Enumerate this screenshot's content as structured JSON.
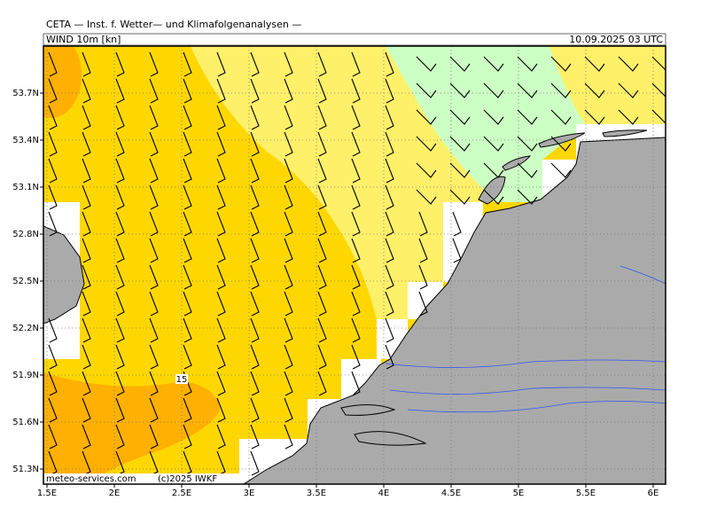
{
  "header": {
    "title": "CETA — Inst. f. Wetter— und Klimafolgenanalysen —",
    "field": "WIND 10m [kn]",
    "valid_time": "10.09.2025 03 UTC"
  },
  "map": {
    "lat_ticks": [
      {
        "value": 53.7,
        "label": "53.7N"
      },
      {
        "value": 53.4,
        "label": "53.4N"
      },
      {
        "value": 53.1,
        "label": "53.1N"
      },
      {
        "value": 52.8,
        "label": "52.8N"
      },
      {
        "value": 52.5,
        "label": "52.5N"
      },
      {
        "value": 52.2,
        "label": "52.2N"
      },
      {
        "value": 51.9,
        "label": "51.9N"
      },
      {
        "value": 51.6,
        "label": "51.6N"
      },
      {
        "value": 51.3,
        "label": "51.3N"
      }
    ],
    "lon_ticks": [
      {
        "value": 1.5,
        "label": "1.5E"
      },
      {
        "value": 2,
        "label": "2E"
      },
      {
        "value": 2.5,
        "label": "2.5E"
      },
      {
        "value": 3,
        "label": "3E"
      },
      {
        "value": 3.5,
        "label": "3.5E"
      },
      {
        "value": 4,
        "label": "4E"
      },
      {
        "value": 4.5,
        "label": "4.5E"
      },
      {
        "value": 5,
        "label": "5E"
      },
      {
        "value": 5.5,
        "label": "5.5E"
      },
      {
        "value": 6,
        "label": "6E"
      }
    ],
    "contour_label": "15"
  },
  "footer": {
    "source": "meteo-services.com",
    "copyright": "(c)2025 IWKF"
  }
}
